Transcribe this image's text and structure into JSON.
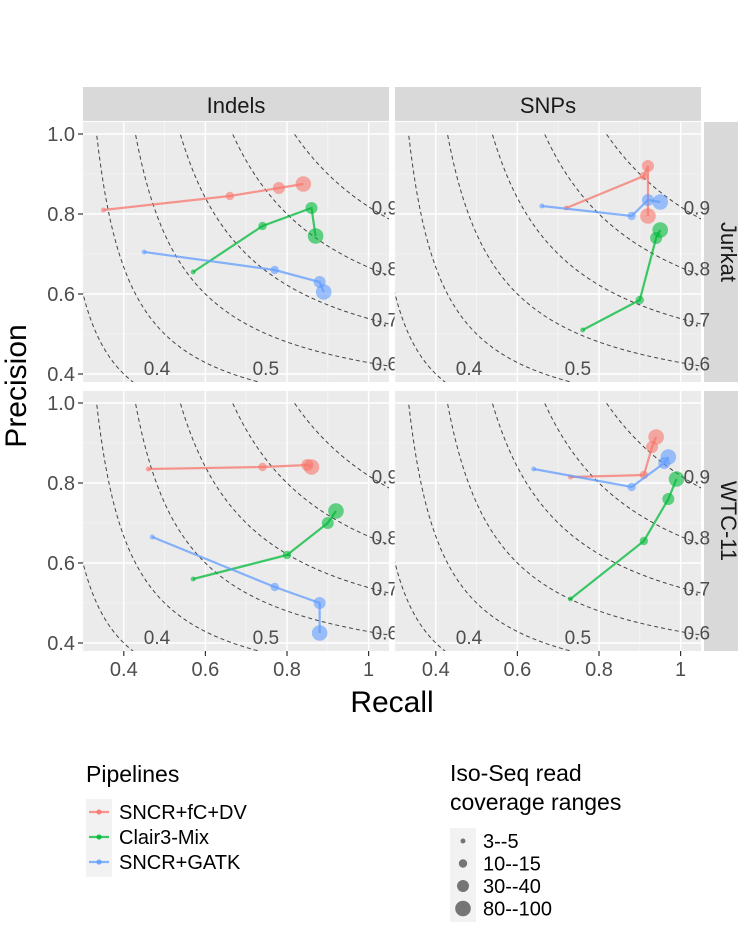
{
  "chart_data": {
    "type": "scatter",
    "subtype": "connected-scatter faceted grid",
    "x_label": "Recall",
    "y_label": "Precision",
    "x_range": [
      0.3,
      1.05
    ],
    "y_range": [
      0.38,
      1.03
    ],
    "x_ticks": [
      0.4,
      0.6,
      0.8,
      1.0
    ],
    "x_tick_labels": [
      "0.4",
      "0.6",
      "0.8",
      "1"
    ],
    "y_ticks": [
      0.4,
      0.6,
      0.8,
      1.0
    ],
    "y_tick_labels": [
      "0.4",
      "0.6",
      "0.8",
      "1.0"
    ],
    "grid": true,
    "iso_f1_curves": [
      0.4,
      0.5,
      0.6,
      0.7,
      0.8,
      0.9
    ],
    "iso_f1_labels": [
      "0.4",
      "0.5",
      "0.6",
      "0.7",
      "0.8",
      "0.9"
    ],
    "column_facets": [
      "Indels",
      "SNPs"
    ],
    "row_facets": [
      "Jurkat",
      "WTC-11"
    ],
    "series_names": [
      "SNCR+fC+DV",
      "Clair3-Mix",
      "SNCR+GATK"
    ],
    "series_colors": [
      "#F8766D",
      "#00BA38",
      "#619CFF"
    ],
    "legend_title": "Pipelines",
    "size_legend_title_lines": [
      "Iso-Seq read",
      "coverage ranges"
    ],
    "size_levels": [
      "3--5",
      "10--15",
      "30--40",
      "80--100"
    ],
    "panels": [
      {
        "column": "Indels",
        "row": "Jurkat",
        "series": [
          {
            "name": "SNCR+fC+DV",
            "recall": [
              0.35,
              0.66,
              0.78,
              0.84
            ],
            "precision": [
              0.81,
              0.845,
              0.865,
              0.875
            ]
          },
          {
            "name": "Clair3-Mix",
            "recall": [
              0.57,
              0.74,
              0.86,
              0.87
            ],
            "precision": [
              0.655,
              0.77,
              0.815,
              0.745
            ]
          },
          {
            "name": "SNCR+GATK",
            "recall": [
              0.45,
              0.77,
              0.88,
              0.89
            ],
            "precision": [
              0.705,
              0.66,
              0.63,
              0.605
            ]
          }
        ]
      },
      {
        "column": "SNPs",
        "row": "Jurkat",
        "series": [
          {
            "name": "SNCR+fC+DV",
            "recall": [
              0.72,
              0.91,
              0.92,
              0.92
            ],
            "precision": [
              0.815,
              0.895,
              0.92,
              0.795
            ]
          },
          {
            "name": "Clair3-Mix",
            "recall": [
              0.76,
              0.9,
              0.94,
              0.95
            ],
            "precision": [
              0.51,
              0.585,
              0.74,
              0.76
            ]
          },
          {
            "name": "SNCR+GATK",
            "recall": [
              0.66,
              0.88,
              0.92,
              0.95
            ],
            "precision": [
              0.82,
              0.795,
              0.835,
              0.83
            ]
          }
        ]
      },
      {
        "column": "Indels",
        "row": "WTC-11",
        "series": [
          {
            "name": "SNCR+fC+DV",
            "recall": [
              0.46,
              0.74,
              0.85,
              0.86
            ],
            "precision": [
              0.835,
              0.84,
              0.845,
              0.84
            ]
          },
          {
            "name": "Clair3-Mix",
            "recall": [
              0.57,
              0.8,
              0.9,
              0.92
            ],
            "precision": [
              0.56,
              0.62,
              0.7,
              0.73
            ]
          },
          {
            "name": "SNCR+GATK",
            "recall": [
              0.47,
              0.77,
              0.88,
              0.88
            ],
            "precision": [
              0.665,
              0.54,
              0.5,
              0.425
            ]
          }
        ]
      },
      {
        "column": "SNPs",
        "row": "WTC-11",
        "series": [
          {
            "name": "SNCR+fC+DV",
            "recall": [
              0.73,
              0.91,
              0.93,
              0.94
            ],
            "precision": [
              0.815,
              0.82,
              0.89,
              0.915
            ]
          },
          {
            "name": "Clair3-Mix",
            "recall": [
              0.73,
              0.91,
              0.97,
              0.99
            ],
            "precision": [
              0.51,
              0.655,
              0.76,
              0.81
            ]
          },
          {
            "name": "SNCR+GATK",
            "recall": [
              0.64,
              0.88,
              0.96,
              0.97
            ],
            "precision": [
              0.835,
              0.79,
              0.85,
              0.865
            ]
          }
        ]
      }
    ]
  }
}
